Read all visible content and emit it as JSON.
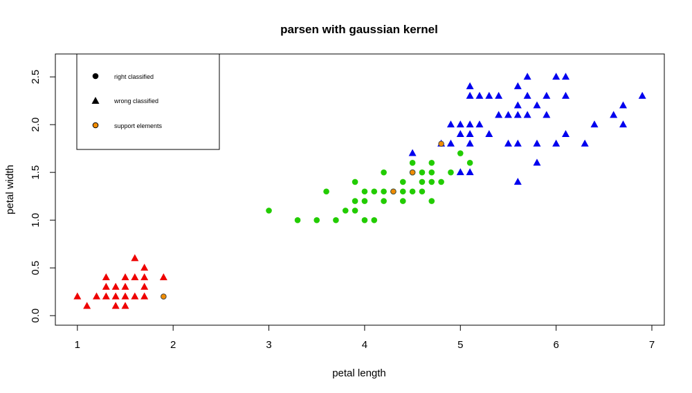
{
  "chart_data": {
    "type": "scatter",
    "title": "parsen with gaussian kernel",
    "xlabel": "petal length",
    "ylabel": "petal width",
    "xlim": [
      0.77,
      7.13
    ],
    "ylim": [
      -0.1,
      2.74
    ],
    "x_ticks": [
      1,
      2,
      3,
      4,
      5,
      6,
      7
    ],
    "y_ticks": [
      0.0,
      0.5,
      1.0,
      1.5,
      2.0,
      2.5
    ],
    "x_tick_labels": [
      "1",
      "2",
      "3",
      "4",
      "5",
      "6",
      "7"
    ],
    "y_tick_labels": [
      "0.0",
      "0.5",
      "1.0",
      "1.5",
      "2.0",
      "2.5"
    ],
    "legend": {
      "position": "top-left",
      "entries": [
        {
          "label": "right classified",
          "shape": "circle"
        },
        {
          "label": "wrong classified",
          "shape": "triangle"
        },
        {
          "label": "support elements",
          "shape": "circle-support"
        }
      ]
    },
    "colors": {
      "red": "#ee0000",
      "green": "#22cc00",
      "blue": "#0000ee",
      "support": "#f08c00"
    },
    "series": [
      {
        "color_key": "red",
        "shape": "triangle",
        "points": [
          [
            1.0,
            0.2
          ],
          [
            1.1,
            0.1
          ],
          [
            1.2,
            0.2
          ],
          [
            1.3,
            0.2
          ],
          [
            1.3,
            0.3
          ],
          [
            1.3,
            0.4
          ],
          [
            1.4,
            0.1
          ],
          [
            1.4,
            0.2
          ],
          [
            1.4,
            0.3
          ],
          [
            1.5,
            0.1
          ],
          [
            1.5,
            0.2
          ],
          [
            1.5,
            0.3
          ],
          [
            1.5,
            0.4
          ],
          [
            1.6,
            0.2
          ],
          [
            1.6,
            0.4
          ],
          [
            1.6,
            0.6
          ],
          [
            1.7,
            0.2
          ],
          [
            1.7,
            0.3
          ],
          [
            1.7,
            0.4
          ],
          [
            1.7,
            0.5
          ],
          [
            1.9,
            0.4
          ]
        ]
      },
      {
        "color_key": "green",
        "shape": "circle",
        "points": [
          [
            3.0,
            1.1
          ],
          [
            3.3,
            1.0
          ],
          [
            3.5,
            1.0
          ],
          [
            3.6,
            1.3
          ],
          [
            3.7,
            1.0
          ],
          [
            3.8,
            1.1
          ],
          [
            3.9,
            1.1
          ],
          [
            3.9,
            1.2
          ],
          [
            3.9,
            1.4
          ],
          [
            4.0,
            1.0
          ],
          [
            4.0,
            1.2
          ],
          [
            4.0,
            1.3
          ],
          [
            4.1,
            1.0
          ],
          [
            4.1,
            1.3
          ],
          [
            4.2,
            1.2
          ],
          [
            4.2,
            1.3
          ],
          [
            4.2,
            1.5
          ],
          [
            4.3,
            1.3
          ],
          [
            4.4,
            1.2
          ],
          [
            4.4,
            1.3
          ],
          [
            4.4,
            1.4
          ],
          [
            4.5,
            1.3
          ],
          [
            4.5,
            1.5
          ],
          [
            4.5,
            1.6
          ],
          [
            4.6,
            1.3
          ],
          [
            4.6,
            1.4
          ],
          [
            4.6,
            1.5
          ],
          [
            4.7,
            1.2
          ],
          [
            4.7,
            1.4
          ],
          [
            4.7,
            1.5
          ],
          [
            4.7,
            1.6
          ],
          [
            4.8,
            1.4
          ],
          [
            4.9,
            1.5
          ],
          [
            5.0,
            1.7
          ],
          [
            5.1,
            1.6
          ]
        ]
      },
      {
        "color_key": "blue",
        "shape": "triangle",
        "points": [
          [
            4.5,
            1.7
          ],
          [
            4.8,
            1.8
          ],
          [
            4.9,
            1.8
          ],
          [
            4.9,
            2.0
          ],
          [
            5.0,
            1.5
          ],
          [
            5.0,
            1.9
          ],
          [
            5.0,
            2.0
          ],
          [
            5.1,
            1.5
          ],
          [
            5.1,
            1.8
          ],
          [
            5.1,
            1.9
          ],
          [
            5.1,
            2.0
          ],
          [
            5.1,
            2.3
          ],
          [
            5.1,
            2.4
          ],
          [
            5.2,
            2.0
          ],
          [
            5.2,
            2.3
          ],
          [
            5.3,
            1.9
          ],
          [
            5.3,
            2.3
          ],
          [
            5.4,
            2.1
          ],
          [
            5.4,
            2.3
          ],
          [
            5.5,
            1.8
          ],
          [
            5.5,
            2.1
          ],
          [
            5.6,
            1.4
          ],
          [
            5.6,
            1.8
          ],
          [
            5.6,
            2.1
          ],
          [
            5.6,
            2.2
          ],
          [
            5.6,
            2.4
          ],
          [
            5.7,
            2.1
          ],
          [
            5.7,
            2.3
          ],
          [
            5.7,
            2.5
          ],
          [
            5.8,
            1.6
          ],
          [
            5.8,
            1.8
          ],
          [
            5.8,
            2.2
          ],
          [
            5.9,
            2.1
          ],
          [
            5.9,
            2.3
          ],
          [
            6.0,
            1.8
          ],
          [
            6.0,
            2.5
          ],
          [
            6.1,
            1.9
          ],
          [
            6.1,
            2.3
          ],
          [
            6.1,
            2.5
          ],
          [
            6.3,
            1.8
          ],
          [
            6.4,
            2.0
          ],
          [
            6.6,
            2.1
          ],
          [
            6.7,
            2.0
          ],
          [
            6.7,
            2.2
          ],
          [
            6.9,
            2.3
          ]
        ]
      },
      {
        "color_key": "support",
        "shape": "circle-support",
        "points": [
          [
            1.9,
            0.2
          ],
          [
            4.3,
            1.3
          ],
          [
            4.5,
            1.5
          ],
          [
            4.8,
            1.8
          ]
        ]
      }
    ]
  }
}
